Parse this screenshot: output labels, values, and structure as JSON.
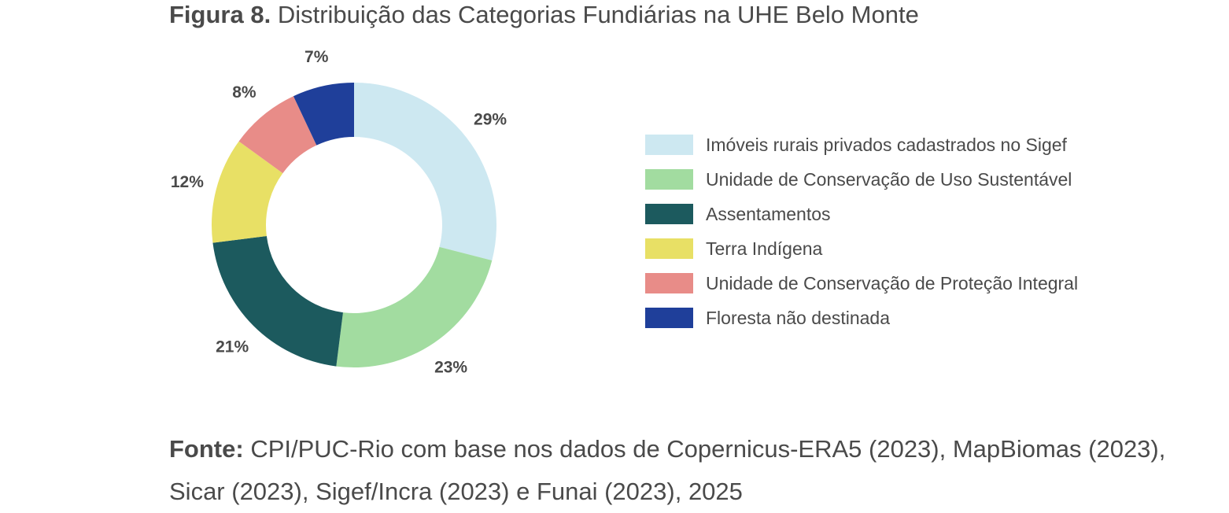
{
  "title": {
    "prefix": "Figura 8.",
    "text": "Distribuição das Categorias Fundiárias na UHE Belo Monte"
  },
  "chart_data": {
    "type": "pie",
    "variant": "donut",
    "legend_position": "right",
    "slices": [
      {
        "label": "Imóveis rurais privados cadastrados no Sigef",
        "value": 29,
        "display": "29%",
        "color": "#cde8f1"
      },
      {
        "label": "Unidade de Conservação de Uso Sustentável",
        "value": 23,
        "display": "23%",
        "color": "#a2dca0"
      },
      {
        "label": "Assentamentos",
        "value": 21,
        "display": "21%",
        "color": "#1c5a5e"
      },
      {
        "label": "Terra Indígena",
        "value": 12,
        "display": "12%",
        "color": "#e8e065"
      },
      {
        "label": "Unidade de Conservação de Proteção Integral",
        "value": 8,
        "display": "8%",
        "color": "#e88c88"
      },
      {
        "label": "Floresta não destinada",
        "value": 7,
        "display": "7%",
        "color": "#1f3f9a"
      }
    ]
  },
  "source": {
    "prefix": "Fonte:",
    "text": "CPI/PUC-Rio com base nos dados de Copernicus-ERA5 (2023), MapBiomas (2023), Sicar (2023), Sigef/Incra (2023) e Funai (2023), 2025"
  }
}
